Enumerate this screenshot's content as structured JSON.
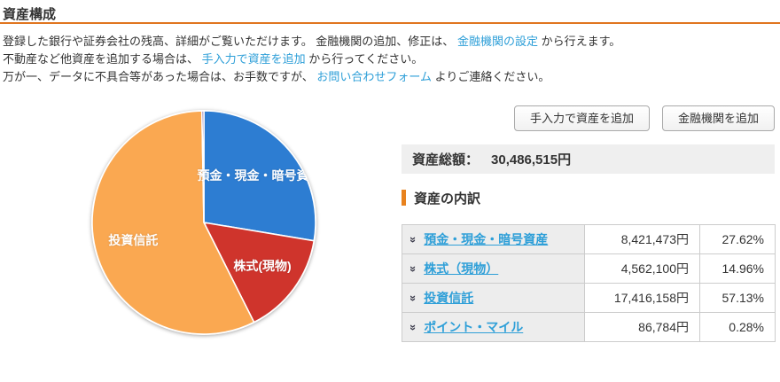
{
  "page": {
    "title": "資産構成"
  },
  "intro": {
    "lines": [
      {
        "pre": "登録した銀行や証券会社の残高、詳細がご覧いただけます。 金融機関の追加、修正は、 ",
        "link": "金融機関の設定",
        "post": " から行えます。"
      },
      {
        "pre": "不動産など他資産を追加する場合は、 ",
        "link": "手入力で資産を追加",
        "post": " から行ってください。"
      },
      {
        "pre": "万が一、データに不具合等があった場合は、お手数ですが、 ",
        "link": "お問い合わせフォーム",
        "post": " よりご連絡ください。"
      }
    ]
  },
  "toolbar": {
    "add_manual_label": "手入力で資産を追加",
    "add_institution_label": "金融機関を追加"
  },
  "summary": {
    "label": "資産総額：",
    "value": "30,486,515円"
  },
  "breakdown": {
    "heading": "資産の内訳",
    "chevron_glyph": "»",
    "rows": [
      {
        "label": "預金・現金・暗号資産",
        "amount": "8,421,473円",
        "percent": "27.62%"
      },
      {
        "label": "株式（現物）",
        "amount": "4,562,100円",
        "percent": "14.96%"
      },
      {
        "label": "投資信託",
        "amount": "17,416,158円",
        "percent": "57.13%"
      },
      {
        "label": "ポイント・マイル",
        "amount": "86,784円",
        "percent": "0.28%"
      }
    ]
  },
  "chart_data": {
    "type": "pie",
    "categories": [
      "預金・現金・暗号資産",
      "株式(現物)",
      "投資信託",
      "ポイント・マイル"
    ],
    "values": [
      27.62,
      14.96,
      57.13,
      0.28
    ],
    "colors": [
      "#2d7dd2",
      "#cf342c",
      "#faa851",
      "#5b3a8e"
    ],
    "start_angle_deg": 0,
    "direction": "clockwise",
    "slice_border_color": "#ffffff",
    "slice_label_color": "#ffffff",
    "min_label_percent": 2,
    "legend": "none",
    "title": ""
  }
}
